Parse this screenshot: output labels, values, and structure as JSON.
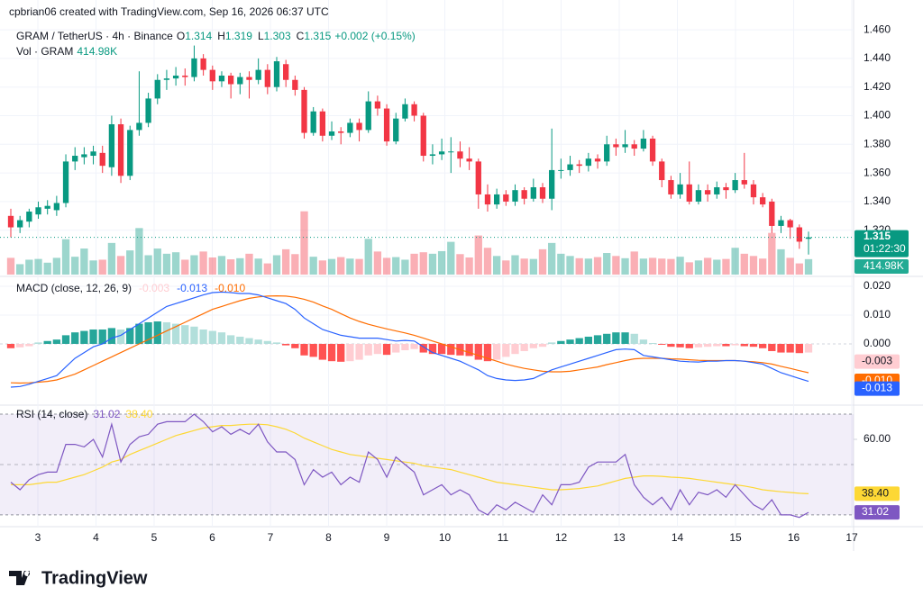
{
  "chart_data": {
    "type": "candlestick",
    "header": {
      "credit": "cpbrian06 created with TradingView.com, Sep 16, 2026 06:37 UTC",
      "symbol": "GRAM / TetherUS · 4h · Binance",
      "ohlc": [
        {
          "label": "O",
          "value": 1.314
        },
        {
          "label": "H",
          "value": 1.319
        },
        {
          "label": "L",
          "value": 1.303
        },
        {
          "label": "C",
          "value": 1.315
        }
      ],
      "change": "+0.002 (+0.15%)",
      "vol_label": "Vol · GRAM",
      "countdown": "01:22:30"
    },
    "up_color": "#089981",
    "down_color": "#f23645",
    "ylim": [
      1.289,
      1.4632
    ],
    "yticks": [
      {
        "value": 1.46,
        "label": "1.460"
      },
      {
        "value": 1.44,
        "label": "1.440"
      },
      {
        "value": 1.42,
        "label": "1.420"
      },
      {
        "value": 1.4,
        "label": "1.400"
      },
      {
        "value": 1.38,
        "label": "1.380"
      },
      {
        "value": 1.36,
        "label": "1.360"
      },
      {
        "value": 1.34,
        "label": "1.340"
      },
      {
        "value": 1.32,
        "label": "1.320"
      }
    ],
    "x_labels": [
      "3",
      "4",
      "5",
      "6",
      "7",
      "8",
      "9",
      "10",
      "11",
      "12",
      "13",
      "14",
      "15",
      "16",
      "17"
    ],
    "candles": [
      [
        1.33,
        1.335,
        1.315,
        1.322
      ],
      [
        1.322,
        1.33,
        1.318,
        1.327
      ],
      [
        1.326,
        1.335,
        1.322,
        1.333
      ],
      [
        1.331,
        1.34,
        1.328,
        1.336
      ],
      [
        1.335,
        1.341,
        1.331,
        1.337
      ],
      [
        1.334,
        1.344,
        1.33,
        1.339
      ],
      [
        1.339,
        1.373,
        1.336,
        1.368
      ],
      [
        1.368,
        1.378,
        1.362,
        1.372
      ],
      [
        1.371,
        1.378,
        1.366,
        1.373
      ],
      [
        1.372,
        1.379,
        1.366,
        1.375
      ],
      [
        1.374,
        1.379,
        1.36,
        1.365
      ],
      [
        1.364,
        1.4,
        1.358,
        1.394
      ],
      [
        1.394,
        1.398,
        1.353,
        1.358
      ],
      [
        1.358,
        1.393,
        1.355,
        1.39
      ],
      [
        1.39,
        1.431,
        1.386,
        1.395
      ],
      [
        1.395,
        1.416,
        1.392,
        1.412
      ],
      [
        1.412,
        1.429,
        1.408,
        1.425
      ],
      [
        1.425,
        1.432,
        1.418,
        1.426
      ],
      [
        1.426,
        1.434,
        1.421,
        1.428
      ],
      [
        1.428,
        1.433,
        1.421,
        1.427
      ],
      [
        1.427,
        1.449,
        1.424,
        1.44
      ],
      [
        1.44,
        1.443,
        1.428,
        1.432
      ],
      [
        1.432,
        1.435,
        1.418,
        1.424
      ],
      [
        1.424,
        1.431,
        1.42,
        1.428
      ],
      [
        1.428,
        1.43,
        1.412,
        1.422
      ],
      [
        1.422,
        1.43,
        1.415,
        1.427
      ],
      [
        1.427,
        1.431,
        1.412,
        1.425
      ],
      [
        1.425,
        1.44,
        1.422,
        1.432
      ],
      [
        1.432,
        1.436,
        1.415,
        1.42
      ],
      [
        1.42,
        1.441,
        1.417,
        1.438
      ],
      [
        1.436,
        1.439,
        1.42,
        1.425
      ],
      [
        1.425,
        1.428,
        1.414,
        1.418
      ],
      [
        1.418,
        1.42,
        1.384,
        1.388
      ],
      [
        1.388,
        1.406,
        1.386,
        1.403
      ],
      [
        1.403,
        1.405,
        1.382,
        1.386
      ],
      [
        1.386,
        1.396,
        1.383,
        1.389
      ],
      [
        1.389,
        1.392,
        1.38,
        1.388
      ],
      [
        1.388,
        1.398,
        1.385,
        1.395
      ],
      [
        1.395,
        1.398,
        1.382,
        1.39
      ],
      [
        1.39,
        1.417,
        1.388,
        1.41
      ],
      [
        1.41,
        1.414,
        1.4,
        1.405
      ],
      [
        1.405,
        1.408,
        1.379,
        1.382
      ],
      [
        1.382,
        1.402,
        1.38,
        1.398
      ],
      [
        1.398,
        1.412,
        1.396,
        1.408
      ],
      [
        1.408,
        1.41,
        1.396,
        1.4
      ],
      [
        1.4,
        1.402,
        1.368,
        1.372
      ],
      [
        1.372,
        1.38,
        1.366,
        1.373
      ],
      [
        1.373,
        1.384,
        1.369,
        1.375
      ],
      [
        1.375,
        1.385,
        1.36,
        1.375
      ],
      [
        1.375,
        1.382,
        1.364,
        1.37
      ],
      [
        1.37,
        1.378,
        1.362,
        1.368
      ],
      [
        1.368,
        1.37,
        1.335,
        1.345
      ],
      [
        1.345,
        1.352,
        1.333,
        1.338
      ],
      [
        1.338,
        1.349,
        1.335,
        1.345
      ],
      [
        1.345,
        1.348,
        1.337,
        1.34
      ],
      [
        1.34,
        1.352,
        1.337,
        1.348
      ],
      [
        1.348,
        1.35,
        1.338,
        1.342
      ],
      [
        1.342,
        1.356,
        1.34,
        1.35
      ],
      [
        1.35,
        1.353,
        1.339,
        1.342
      ],
      [
        1.342,
        1.391,
        1.334,
        1.362
      ],
      [
        1.362,
        1.37,
        1.356,
        1.362
      ],
      [
        1.362,
        1.372,
        1.358,
        1.366
      ],
      [
        1.366,
        1.369,
        1.36,
        1.365
      ],
      [
        1.365,
        1.374,
        1.361,
        1.37
      ],
      [
        1.37,
        1.373,
        1.363,
        1.368
      ],
      [
        1.368,
        1.386,
        1.365,
        1.38
      ],
      [
        1.38,
        1.384,
        1.372,
        1.378
      ],
      [
        1.378,
        1.39,
        1.374,
        1.38
      ],
      [
        1.38,
        1.383,
        1.372,
        1.377
      ],
      [
        1.377,
        1.39,
        1.375,
        1.384
      ],
      [
        1.384,
        1.386,
        1.365,
        1.368
      ],
      [
        1.368,
        1.37,
        1.35,
        1.355
      ],
      [
        1.355,
        1.358,
        1.342,
        1.345
      ],
      [
        1.345,
        1.36,
        1.342,
        1.352
      ],
      [
        1.352,
        1.368,
        1.338,
        1.34
      ],
      [
        1.34,
        1.352,
        1.338,
        1.348
      ],
      [
        1.348,
        1.352,
        1.34,
        1.345
      ],
      [
        1.345,
        1.354,
        1.342,
        1.35
      ],
      [
        1.35,
        1.353,
        1.342,
        1.348
      ],
      [
        1.348,
        1.36,
        1.346,
        1.355
      ],
      [
        1.355,
        1.374,
        1.349,
        1.352
      ],
      [
        1.352,
        1.355,
        1.338,
        1.343
      ],
      [
        1.343,
        1.346,
        1.336,
        1.338
      ],
      [
        1.34,
        1.342,
        1.318,
        1.323
      ],
      [
        1.323,
        1.33,
        1.318,
        1.327
      ],
      [
        1.327,
        1.328,
        1.314,
        1.322
      ],
      [
        1.322,
        1.324,
        1.307,
        1.312
      ],
      [
        1.314,
        1.319,
        1.303,
        1.315
      ]
    ],
    "volume": {
      "ylim": [
        0,
        6700000
      ],
      "values": [
        450000,
        280000,
        400000,
        420000,
        320000,
        450000,
        950000,
        480000,
        700000,
        380000,
        400000,
        850000,
        500000,
        650000,
        1250000,
        520000,
        700000,
        560000,
        600000,
        400000,
        520000,
        620000,
        460000,
        500000,
        410000,
        440000,
        560000,
        430000,
        300000,
        520000,
        680000,
        550000,
        1700000,
        480000,
        380000,
        420000,
        470000,
        430000,
        420000,
        960000,
        620000,
        450000,
        470000,
        400000,
        560000,
        600000,
        560000,
        630000,
        880000,
        550000,
        460000,
        1050000,
        720000,
        500000,
        380000,
        520000,
        430000,
        420000,
        680000,
        850000,
        560000,
        500000,
        440000,
        430000,
        470000,
        580000,
        500000,
        440000,
        620000,
        430000,
        450000,
        430000,
        420000,
        480000,
        330000,
        380000,
        450000,
        400000,
        420000,
        720000,
        560000,
        500000,
        430000,
        1120000,
        680000,
        450000,
        300000,
        414980
      ],
      "last_label": "414.98K"
    },
    "macd": {
      "title": "MACD (close, 12, 26, 9)",
      "ylim": [
        -0.0197,
        0.0225
      ],
      "yticks": [
        {
          "value": 0.02,
          "label": "0.020"
        },
        {
          "value": 0.01,
          "label": "0.010"
        },
        {
          "value": 0,
          "label": "0.000"
        }
      ],
      "legend": [
        {
          "value": -0.003,
          "label": "-0.003",
          "color": "#ffcdd2"
        },
        {
          "value": -0.013,
          "label": "-0.013",
          "color": "#2962ff"
        },
        {
          "value": -0.01,
          "label": "-0.010",
          "color": "#ff6d00"
        }
      ],
      "hist_colors": [
        "#26a69a",
        "#b2dfdb",
        "#ff5252",
        "#ffcdd2"
      ],
      "hist": [
        -0.0015,
        -0.0012,
        -0.0008,
        0.0005,
        0.001,
        0.0015,
        0.003,
        0.004,
        0.0045,
        0.005,
        0.005,
        0.0055,
        0.005,
        0.0055,
        0.007,
        0.0075,
        0.0078,
        0.0075,
        0.007,
        0.0065,
        0.006,
        0.005,
        0.0045,
        0.004,
        0.003,
        0.0025,
        0.002,
        0.0015,
        0.001,
        0.0005,
        -0.0005,
        -0.0015,
        -0.004,
        -0.0045,
        -0.0055,
        -0.006,
        -0.0062,
        -0.006,
        -0.0055,
        -0.004,
        -0.0035,
        -0.0038,
        -0.003,
        -0.0022,
        -0.0018,
        -0.003,
        -0.0035,
        -0.0035,
        -0.0038,
        -0.004,
        -0.0042,
        -0.0055,
        -0.006,
        -0.0055,
        -0.0045,
        -0.0035,
        -0.0025,
        -0.0015,
        -0.001,
        0.0005,
        0.001,
        0.0015,
        0.002,
        0.0025,
        0.003,
        0.0035,
        0.004,
        0.004,
        0.0035,
        0.0015,
        0.0003,
        -0.0003,
        -0.001,
        -0.0012,
        -0.0015,
        -0.0012,
        -0.001,
        -0.0008,
        -0.0008,
        -0.0005,
        -0.0008,
        -0.001,
        -0.0015,
        -0.0025,
        -0.003,
        -0.003,
        -0.0032,
        -0.003
      ],
      "macd_color": "#2962ff",
      "macd": [
        -0.015,
        -0.0148,
        -0.014,
        -0.013,
        -0.012,
        -0.011,
        -0.008,
        -0.005,
        -0.003,
        -0.001,
        0,
        0.002,
        0.003,
        0.005,
        0.007,
        0.009,
        0.011,
        0.013,
        0.014,
        0.015,
        0.016,
        0.017,
        0.0178,
        0.018,
        0.0178,
        0.0175,
        0.0175,
        0.017,
        0.016,
        0.015,
        0.014,
        0.012,
        0.009,
        0.007,
        0.005,
        0.004,
        0.003,
        0.0025,
        0.002,
        0.002,
        0.002,
        0.0015,
        0.001,
        0.0012,
        0.001,
        -0.001,
        -0.003,
        -0.004,
        -0.005,
        -0.006,
        -0.0075,
        -0.009,
        -0.011,
        -0.012,
        -0.0125,
        -0.0127,
        -0.0125,
        -0.012,
        -0.0105,
        -0.009,
        -0.008,
        -0.007,
        -0.006,
        -0.005,
        -0.004,
        -0.003,
        -0.002,
        -0.0018,
        -0.002,
        -0.004,
        -0.0045,
        -0.005,
        -0.0055,
        -0.006,
        -0.0062,
        -0.0063,
        -0.006,
        -0.006,
        -0.0058,
        -0.0058,
        -0.006,
        -0.0065,
        -0.007,
        -0.0085,
        -0.01,
        -0.011,
        -0.012,
        -0.013
      ],
      "signal_color": "#ff6d00",
      "signal": [
        -0.0135,
        -0.0136,
        -0.0135,
        -0.0133,
        -0.013,
        -0.0125,
        -0.0115,
        -0.0105,
        -0.009,
        -0.0075,
        -0.006,
        -0.0045,
        -0.003,
        -0.0015,
        0,
        0.0015,
        0.003,
        0.0045,
        0.006,
        0.0075,
        0.009,
        0.0105,
        0.012,
        0.013,
        0.014,
        0.015,
        0.0158,
        0.0163,
        0.0166,
        0.0167,
        0.0166,
        0.0162,
        0.0155,
        0.0145,
        0.0132,
        0.012,
        0.0105,
        0.009,
        0.0078,
        0.0068,
        0.006,
        0.0052,
        0.0045,
        0.0038,
        0.003,
        0.002,
        0.001,
        0,
        -0.001,
        -0.002,
        -0.003,
        -0.004,
        -0.005,
        -0.006,
        -0.007,
        -0.0078,
        -0.0085,
        -0.009,
        -0.0095,
        -0.0097,
        -0.0097,
        -0.0095,
        -0.009,
        -0.0085,
        -0.008,
        -0.0072,
        -0.0065,
        -0.0058,
        -0.0052,
        -0.005,
        -0.005,
        -0.005,
        -0.0052,
        -0.0053,
        -0.0055,
        -0.0057,
        -0.0058,
        -0.0058,
        -0.0058,
        -0.0058,
        -0.006,
        -0.0062,
        -0.0065,
        -0.007,
        -0.0078,
        -0.0085,
        -0.0093,
        -0.01
      ]
    },
    "rsi": {
      "title": "RSI (14, close)",
      "ylim": [
        26.4,
        71.8
      ],
      "levels": [
        70,
        50,
        30
      ],
      "yticks": [
        {
          "value": 60,
          "label": "60.00"
        }
      ],
      "legend": [
        {
          "value": 31.02,
          "label": "31.02",
          "color": "#7e57c2"
        },
        {
          "value": 38.4,
          "label": "38.40",
          "color": "#fdd835"
        }
      ],
      "rsi": [
        43,
        40,
        44,
        46,
        47,
        47,
        58,
        58,
        57,
        60,
        53,
        66,
        51,
        58,
        61,
        62,
        66,
        67,
        67,
        67,
        70,
        67,
        63,
        65,
        62,
        64,
        62,
        66,
        59,
        55,
        55,
        52,
        42,
        48,
        45,
        47,
        42,
        45,
        43,
        55,
        52,
        45,
        53,
        50,
        47,
        38,
        40,
        42,
        38,
        40,
        38,
        32,
        30,
        34,
        32,
        35,
        33,
        31,
        38,
        34,
        42,
        42,
        43,
        49,
        51,
        51,
        51,
        54,
        42,
        37,
        34,
        37,
        32,
        40,
        34,
        39,
        38,
        40,
        37,
        42,
        38,
        34,
        32,
        36,
        30,
        30,
        29,
        31.02
      ],
      "ma": [
        42,
        42,
        42,
        42.5,
        43,
        43,
        44,
        45,
        46,
        47.5,
        49,
        51,
        52,
        54,
        55.5,
        57,
        58.5,
        60,
        61.5,
        62.5,
        63.5,
        64.5,
        65,
        65.5,
        65.5,
        65.8,
        66,
        66,
        65.8,
        65,
        64,
        62.5,
        60.5,
        59,
        57.5,
        56,
        55,
        54,
        53.5,
        53,
        52.5,
        52,
        51.5,
        51,
        50.5,
        49.5,
        49,
        48.5,
        48,
        47,
        46,
        45,
        44,
        43,
        42.5,
        42,
        41.5,
        41,
        40.5,
        40,
        40,
        40.2,
        40.5,
        41,
        41.5,
        42.5,
        43.5,
        44.5,
        45,
        45.5,
        45.5,
        45.3,
        45,
        44.8,
        44.5,
        44,
        43.5,
        43,
        42.5,
        42,
        41.5,
        40.8,
        40,
        39.6,
        39.2,
        38.9,
        38.6,
        38.4
      ]
    },
    "footer": "TradingView"
  }
}
